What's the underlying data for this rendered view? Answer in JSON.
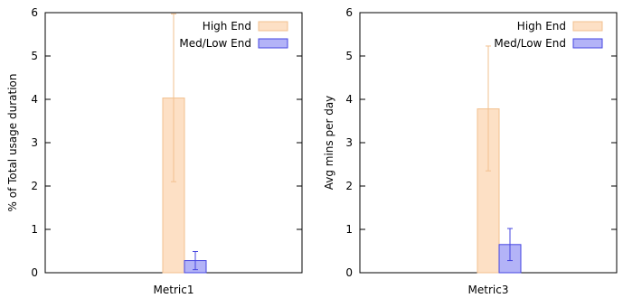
{
  "chart_data": [
    {
      "type": "bar",
      "categories": [
        "Metric1"
      ],
      "ylabel": "% of Total usage duration",
      "xlabel": "",
      "ylim": [
        0,
        6
      ],
      "yticks": [
        "0",
        "1",
        "2",
        "3",
        "4",
        "5",
        "6"
      ],
      "grid": false,
      "legend_position": "top-right",
      "series": [
        {
          "name": "High End",
          "values": [
            4.03
          ],
          "error": [
            [
              2.1,
              5.97
            ]
          ],
          "fill": "#fde0c5",
          "stroke": "#f2c08f"
        },
        {
          "name": "Med/Low End",
          "values": [
            0.28
          ],
          "error": [
            [
              0.07,
              0.49
            ]
          ],
          "fill": "#b3b3f7",
          "stroke": "#4646e0"
        }
      ]
    },
    {
      "type": "bar",
      "categories": [
        "Metric3"
      ],
      "ylabel": "Avg mins per day",
      "xlabel": "",
      "ylim": [
        0,
        6
      ],
      "yticks": [
        "0",
        "1",
        "2",
        "3",
        "4",
        "5",
        "6"
      ],
      "grid": false,
      "legend_position": "top-right",
      "series": [
        {
          "name": "High End",
          "values": [
            3.78
          ],
          "error": [
            [
              2.35,
              5.23
            ]
          ],
          "fill": "#fde0c5",
          "stroke": "#f2c08f"
        },
        {
          "name": "Med/Low End",
          "values": [
            0.65
          ],
          "error": [
            [
              0.28,
              1.02
            ]
          ],
          "fill": "#b3b3f7",
          "stroke": "#4646e0"
        }
      ]
    }
  ]
}
